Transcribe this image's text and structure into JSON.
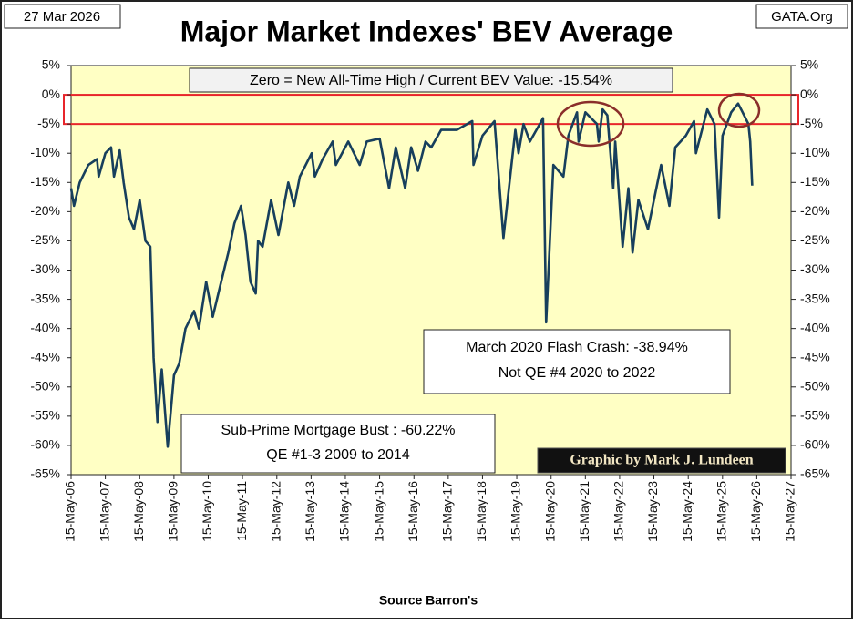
{
  "chart_data": {
    "type": "line",
    "title": "Major Market Indexes' BEV Average",
    "date_stamp": "27 Mar 2026",
    "source_site": "GATA.Org",
    "x_label": "Source Barron's",
    "credit": "Graphic by Mark J. Lundeen",
    "annotations": [
      {
        "lines": [
          "Zero = New All-Time High / Current BEV Value:  -15.54%"
        ]
      },
      {
        "lines": [
          "March 2020 Flash Crash:  -38.94%",
          "Not QE #4 2020 to 2022"
        ]
      },
      {
        "lines": [
          "Sub-Prime Mortgage Bust : -60.22%",
          "QE #1-3 2009 to 2014"
        ]
      }
    ],
    "highlight_band": {
      "from": 0,
      "to": -5,
      "color": "#e8252b"
    },
    "xlim": [
      "2006-05-15",
      "2027-05-15"
    ],
    "xticks": [
      {
        "value": "2006-05-15",
        "label": "15-May-06"
      },
      {
        "value": "2007-05-15",
        "label": "15-May-07"
      },
      {
        "value": "2008-05-15",
        "label": "15-May-08"
      },
      {
        "value": "2009-05-15",
        "label": "15-May-09"
      },
      {
        "value": "2010-05-15",
        "label": "15-May-10"
      },
      {
        "value": "2011-05-15",
        "label": "15-May-11"
      },
      {
        "value": "2012-05-15",
        "label": "15-May-12"
      },
      {
        "value": "2013-05-15",
        "label": "15-May-13"
      },
      {
        "value": "2014-05-15",
        "label": "15-May-14"
      },
      {
        "value": "2015-05-15",
        "label": "15-May-15"
      },
      {
        "value": "2016-05-15",
        "label": "15-May-16"
      },
      {
        "value": "2017-05-15",
        "label": "15-May-17"
      },
      {
        "value": "2018-05-15",
        "label": "15-May-18"
      },
      {
        "value": "2019-05-15",
        "label": "15-May-19"
      },
      {
        "value": "2020-05-15",
        "label": "15-May-20"
      },
      {
        "value": "2021-05-15",
        "label": "15-May-21"
      },
      {
        "value": "2022-05-15",
        "label": "15-May-22"
      },
      {
        "value": "2023-05-15",
        "label": "15-May-23"
      },
      {
        "value": "2024-05-15",
        "label": "15-May-24"
      },
      {
        "value": "2025-05-15",
        "label": "15-May-25"
      },
      {
        "value": "2026-05-15",
        "label": "15-May-26"
      },
      {
        "value": "2027-05-15",
        "label": "15-May-27"
      }
    ],
    "ylim": [
      -65,
      5
    ],
    "yticks": [
      {
        "value": 5,
        "label": "5%"
      },
      {
        "value": 0,
        "label": "0%"
      },
      {
        "value": -5,
        "label": "-5%"
      },
      {
        "value": -10,
        "label": "-10%"
      },
      {
        "value": -15,
        "label": "-15%"
      },
      {
        "value": -20,
        "label": "-20%"
      },
      {
        "value": -25,
        "label": "-25%"
      },
      {
        "value": -30,
        "label": "-30%"
      },
      {
        "value": -35,
        "label": "-35%"
      },
      {
        "value": -40,
        "label": "-40%"
      },
      {
        "value": -45,
        "label": "-45%"
      },
      {
        "value": -50,
        "label": "-50%"
      },
      {
        "value": -55,
        "label": "-55%"
      },
      {
        "value": -60,
        "label": "-60%"
      },
      {
        "value": -65,
        "label": "-65%"
      }
    ],
    "y2lim": [
      -65,
      5
    ],
    "y2ticks": [
      {
        "value": 5,
        "label": "5%"
      },
      {
        "value": 0,
        "label": "0%"
      },
      {
        "value": -5,
        "label": "-5%"
      },
      {
        "value": -10,
        "label": "-10%"
      },
      {
        "value": -15,
        "label": "-15%"
      },
      {
        "value": -20,
        "label": "-20%"
      },
      {
        "value": -25,
        "label": "-25%"
      },
      {
        "value": -30,
        "label": "-30%"
      },
      {
        "value": -35,
        "label": "-35%"
      },
      {
        "value": -40,
        "label": "-40%"
      },
      {
        "value": -45,
        "label": "-45%"
      },
      {
        "value": -50,
        "label": "-50%"
      },
      {
        "value": -55,
        "label": "-55%"
      },
      {
        "value": -60,
        "label": "-60%"
      },
      {
        "value": -65,
        "label": "-65%"
      }
    ],
    "background": "#ffffc4",
    "series": [
      {
        "color": "#173f5c",
        "x": [
          "2006-05-15",
          "2006-06-15",
          "2006-08-15",
          "2006-11-15",
          "2007-02-15",
          "2007-03-05",
          "2007-05-15",
          "2007-07-15",
          "2007-08-15",
          "2007-10-15",
          "2007-11-26",
          "2008-01-22",
          "2008-03-15",
          "2008-05-15",
          "2008-07-15",
          "2008-09-05",
          "2008-10-10",
          "2008-11-20",
          "2009-01-05",
          "2009-03-09",
          "2009-05-15",
          "2009-07-10",
          "2009-09-15",
          "2009-12-15",
          "2010-02-05",
          "2010-04-23",
          "2010-07-02",
          "2010-09-15",
          "2010-12-15",
          "2011-02-18",
          "2011-04-29",
          "2011-06-17",
          "2011-08-08",
          "2011-10-03",
          "2011-10-28",
          "2011-12-15",
          "2012-03-15",
          "2012-06-01",
          "2012-09-14",
          "2012-11-15",
          "2013-01-15",
          "2013-05-21",
          "2013-06-24",
          "2013-09-15",
          "2013-12-31",
          "2014-02-03",
          "2014-06-15",
          "2014-10-15",
          "2014-12-29",
          "2015-05-15",
          "2015-08-24",
          "2015-11-03",
          "2016-02-11",
          "2016-04-15",
          "2016-06-27",
          "2016-09-15",
          "2016-11-15",
          "2017-03-01",
          "2017-08-15",
          "2018-01-26",
          "2018-02-08",
          "2018-05-15",
          "2018-09-20",
          "2018-12-24",
          "2019-04-30",
          "2019-06-03",
          "2019-07-26",
          "2019-10-02",
          "2020-02-19",
          "2020-03-23",
          "2020-06-08",
          "2020-09-23",
          "2020-11-15",
          "2021-02-15",
          "2021-03-04",
          "2021-05-15",
          "2021-09-15",
          "2021-10-04",
          "2021-11-15",
          "2022-01-04",
          "2022-03-08",
          "2022-03-29",
          "2022-06-16",
          "2022-08-16",
          "2022-09-30",
          "2022-12-01",
          "2023-03-13",
          "2023-07-31",
          "2023-10-27",
          "2023-12-29",
          "2024-04-19",
          "2024-07-16",
          "2024-08-05",
          "2024-12-04",
          "2025-02-19",
          "2025-04-08",
          "2025-05-15",
          "2025-08-15",
          "2025-10-28",
          "2025-12-15",
          "2026-02-15",
          "2026-03-06",
          "2026-03-27"
        ],
        "values": [
          -16,
          -19,
          -15,
          -12,
          -11,
          -14,
          -10,
          -9,
          -14,
          -9.5,
          -15,
          -21,
          -23,
          -18,
          -25,
          -26,
          -45,
          -56,
          -47,
          -60.22,
          -48,
          -46,
          -40,
          -37,
          -40,
          -32,
          -38,
          -33,
          -27,
          -22,
          -19,
          -24,
          -32,
          -34,
          -25,
          -26,
          -18,
          -24,
          -15,
          -19,
          -14,
          -10,
          -14,
          -11,
          -8,
          -12,
          -8,
          -12,
          -8,
          -7.5,
          -16,
          -9,
          -16,
          -9,
          -13,
          -8,
          -9,
          -6,
          -6,
          -4.5,
          -12,
          -7,
          -4.5,
          -24.5,
          -6,
          -10,
          -5,
          -8,
          -4,
          -38.94,
          -12,
          -14,
          -7,
          -3,
          -8,
          -3,
          -5,
          -8,
          -2.5,
          -3.5,
          -16,
          -8,
          -26,
          -16,
          -27,
          -18,
          -23,
          -12,
          -19,
          -9,
          -7,
          -4.5,
          -10,
          -2.5,
          -5,
          -21,
          -7,
          -3,
          -1.5,
          -3,
          -5,
          -8,
          -15.54
        ]
      }
    ]
  }
}
